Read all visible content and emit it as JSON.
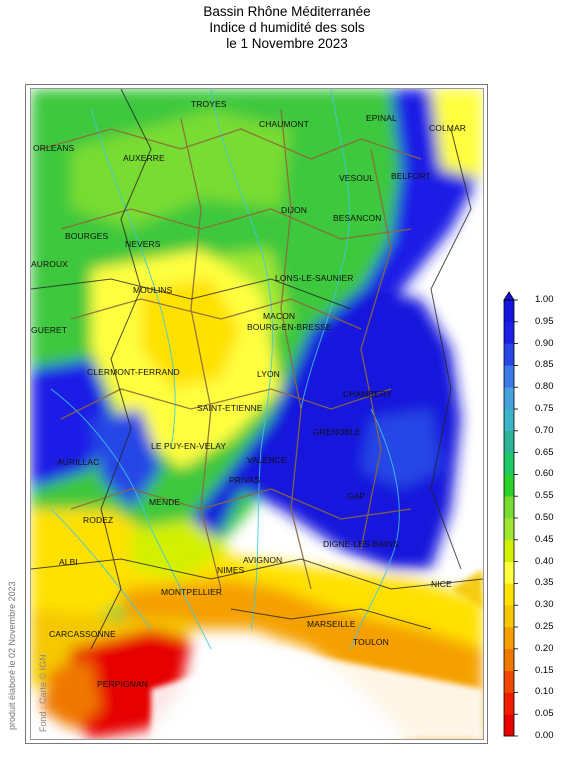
{
  "title": {
    "line1": "Bassin Rhône Méditerranée",
    "line2": "Indice d humidité des sols",
    "line3": "le 1 Novembre 2023"
  },
  "credit": "produit élaboré le 02 Novembre 2023",
  "credit_source": "Fond : Carte © IGN",
  "cities": [
    {
      "name": "TROYES"
    },
    {
      "name": "CHAUMONT"
    },
    {
      "name": "EPINAL"
    },
    {
      "name": "COLMAR"
    },
    {
      "name": "ORLEANS"
    },
    {
      "name": "AUXERRE"
    },
    {
      "name": "VESOUL"
    },
    {
      "name": "BELFORT"
    },
    {
      "name": "DIJON"
    },
    {
      "name": "BESANCON"
    },
    {
      "name": "BOURGES"
    },
    {
      "name": "NEVERS"
    },
    {
      "name": "AUROUX"
    },
    {
      "name": "LONS-LE-SAUNIER"
    },
    {
      "name": "MOULINS"
    },
    {
      "name": "MACON"
    },
    {
      "name": "GUERET"
    },
    {
      "name": "BOURG-EN-BRESSE"
    },
    {
      "name": "CLERMONT-FERRAND"
    },
    {
      "name": "LYON"
    },
    {
      "name": "CHAMBERY"
    },
    {
      "name": "SAINT-ETIENNE"
    },
    {
      "name": "GRENOBLE"
    },
    {
      "name": "AURILLAC"
    },
    {
      "name": "LE PUY-EN-VELAY"
    },
    {
      "name": "VALENCE"
    },
    {
      "name": "PRIVAS"
    },
    {
      "name": "GAP"
    },
    {
      "name": "MENDE"
    },
    {
      "name": "RODEZ"
    },
    {
      "name": "DIGNE-LES-BAINS"
    },
    {
      "name": "ALBI"
    },
    {
      "name": "AVIGNON"
    },
    {
      "name": "NIMES"
    },
    {
      "name": "NICE"
    },
    {
      "name": "MONTPELLIER"
    },
    {
      "name": "MARSEILLE"
    },
    {
      "name": "CARCASSONNE"
    },
    {
      "name": "TOULON"
    },
    {
      "name": "PERPIGNAN"
    }
  ],
  "legend": {
    "min": 0.0,
    "max": 1.0,
    "labels": [
      "1.00",
      "0.95",
      "0.90",
      "0.85",
      "0.80",
      "0.75",
      "0.70",
      "0.65",
      "0.60",
      "0.55",
      "0.50",
      "0.45",
      "0.40",
      "0.35",
      "0.30",
      "0.25",
      "0.20",
      "0.15",
      "0.10",
      "0.05",
      "0.00"
    ],
    "colors": [
      "#e60000",
      "#f01e00",
      "#f04800",
      "#f07800",
      "#f5a000",
      "#f5c800",
      "#ffe100",
      "#ffff40",
      "#d2f000",
      "#a0e632",
      "#78dc32",
      "#2ad22a",
      "#1ec864",
      "#2db496",
      "#3cb4c8",
      "#46a0dc",
      "#3c78e6",
      "#2846e6",
      "#1e1ee6",
      "#1414dc"
    ]
  }
}
